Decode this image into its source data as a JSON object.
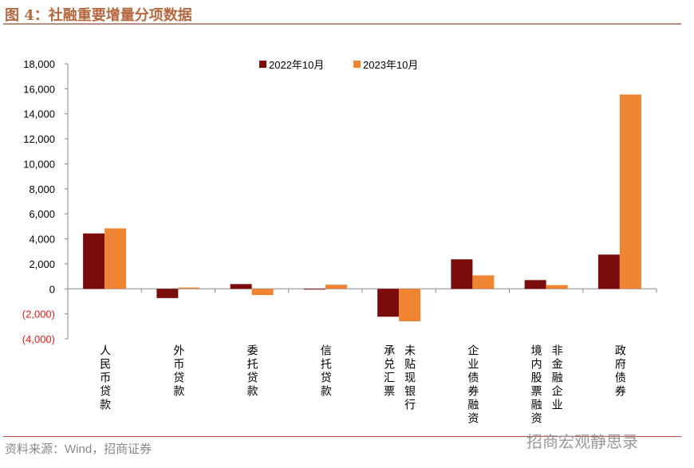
{
  "title": "图 4：社融重要增量分项数据",
  "source": "资料来源：Wind，招商证券",
  "watermark": "招商宏观静思录",
  "colors": {
    "s2022": "#7b0c0c",
    "s2023": "#ef8533",
    "neg": "#e02020"
  },
  "chart_data": {
    "type": "bar",
    "title": "社融重要增量分项数据",
    "categories": [
      "人民币贷款",
      "外币贷款",
      "委托贷款",
      "信托贷款",
      "未贴现银行\n承兑汇票",
      "企业债券融资",
      "非金融企业\n境内股票融资",
      "政府债券"
    ],
    "series": [
      {
        "name": "2022年10月",
        "values": [
          4431,
          -740,
          380,
          -60,
          -2230,
          2360,
          700,
          2740
        ]
      },
      {
        "name": "2023年10月",
        "values": [
          4837,
          100,
          -500,
          330,
          -2600,
          1080,
          300,
          15540
        ]
      }
    ],
    "ylim": [
      -4000,
      18000
    ],
    "yticks": [
      -4000,
      -2000,
      0,
      2000,
      4000,
      6000,
      8000,
      10000,
      12000,
      14000,
      16000,
      18000
    ],
    "ytick_labels": [
      "(4,000)",
      "(2,000)",
      "0",
      "2,000",
      "4,000",
      "6,000",
      "8,000",
      "10,000",
      "12,000",
      "14,000",
      "16,000",
      "18,000"
    ],
    "legend": "top-center",
    "grid": false
  }
}
